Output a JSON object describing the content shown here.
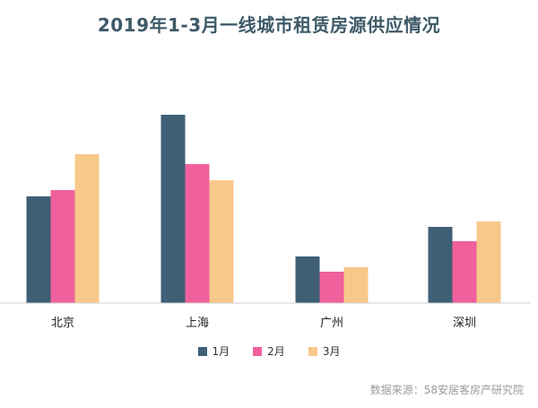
{
  "chart_data": {
    "type": "bar",
    "title": "2019年1-3月一线城市租赁房源供应情况",
    "categories": [
      "北京",
      "上海",
      "广州",
      "深圳"
    ],
    "series": [
      {
        "name": "1月",
        "color": "#3e5f75",
        "values": [
          119,
          210,
          52,
          85
        ]
      },
      {
        "name": "2月",
        "color": "#f0609c",
        "values": [
          126,
          155,
          35,
          69
        ]
      },
      {
        "name": "3月",
        "color": "#f8c88b",
        "values": [
          166,
          137,
          40,
          91
        ]
      }
    ],
    "ylim": [
      0,
      220
    ],
    "grid": false,
    "legend_position": "bottom",
    "xlabel": "",
    "ylabel": ""
  },
  "source_note": "数据来源：58安居客房产研究院"
}
